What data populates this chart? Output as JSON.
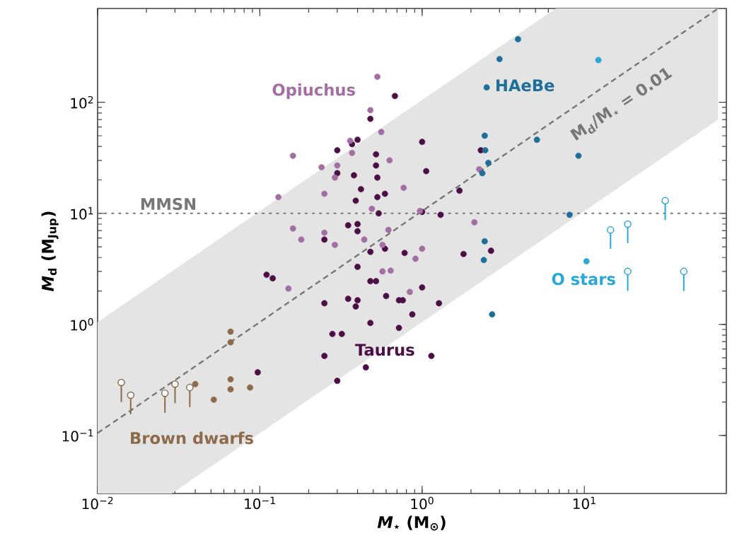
{
  "chart_data": {
    "type": "scatter",
    "xlabel": "*M*$_{⋆}$ (M$_{⊙}$)",
    "ylabel": "*M*$_{d}$ (M$_{Jup}$)",
    "log": "xy",
    "grid": false,
    "legend": false,
    "xlim": [
      0.01,
      75
    ],
    "ylim": [
      0.03,
      700
    ],
    "xticks": [
      {
        "value": 0.01,
        "label": "10$^{−2}$"
      },
      {
        "value": 0.1,
        "label": "10$^{−1}$"
      },
      {
        "value": 1,
        "label": "10$^{0}$"
      },
      {
        "value": 10,
        "label": "10$^{1}$"
      }
    ],
    "yticks": [
      {
        "value": 0.1,
        "label": "10$^{−1}$"
      },
      {
        "value": 1,
        "label": "10$^{0}$"
      },
      {
        "value": 10,
        "label": "10$^{1}$"
      },
      {
        "value": 100,
        "label": "10$^{2}$"
      }
    ],
    "ref_lines": [
      {
        "axis": "y",
        "value": 10,
        "label": "MMSN",
        "color": "#777777",
        "line_style": "dotted"
      }
    ],
    "series": [
      {
        "type": "line",
        "name": "*M*$_{d}$/*M*$_{⋆}$ = 0.01",
        "color": "#777777",
        "line_style": "dashed",
        "marker": "none",
        "x": [
          0.01,
          0.0286,
          6.68,
          66.8
        ],
        "values": [
          0.105,
          0.3,
          70,
          700
        ],
        "lower": [
          0.03,
          0.03,
          7,
          70
        ],
        "upper": [
          1.05,
          3,
          700,
          700
        ]
      },
      {
        "name": "Taurus",
        "color": "#4b0f45",
        "marker": "circle",
        "x": [
          0.68,
          0.48,
          0.37,
          0.4,
          0.3,
          0.52,
          0.52,
          0.3,
          0.38,
          0.53,
          0.42,
          0.39,
          0.53,
          0.59,
          0.54,
          0.35,
          0.4,
          0.4,
          0.25,
          0.48,
          0.59,
          0.78,
          1.0,
          1.06,
          1.7,
          1.3,
          2.66,
          1.8,
          2.3,
          1.0,
          0.097,
          0.11,
          0.12,
          0.25,
          0.35,
          0.4,
          0.39,
          0.4,
          0.6,
          0.48,
          0.52,
          0.72,
          0.76,
          0.72,
          0.48,
          0.28,
          0.32,
          0.25,
          0.45,
          0.3,
          1.0,
          0.87,
          1.27,
          1.14
        ],
        "values": [
          114,
          71,
          42,
          46,
          37,
          34,
          27,
          23,
          22,
          21,
          16.5,
          13,
          14,
          15,
          10,
          7.8,
          8,
          6.9,
          5.8,
          4.5,
          4.8,
          4.4,
          44,
          24,
          16,
          9.7,
          4.6,
          4.3,
          37,
          10.3,
          0.37,
          2.8,
          2.6,
          1.55,
          1.7,
          1.65,
          1.45,
          3.3,
          1.8,
          2.45,
          2.45,
          1.65,
          1.65,
          0.93,
          1.03,
          0.82,
          0.82,
          0.52,
          0.41,
          0.31,
          2.15,
          1.23,
          1.55,
          0.52
        ]
      },
      {
        "name": "Opiuchus",
        "color": "#a36fa3",
        "marker": "circle",
        "x": [
          0.53,
          0.48,
          0.56,
          0.16,
          0.24,
          0.3,
          0.29,
          0.37,
          0.36,
          0.63,
          0.13,
          0.25,
          0.77,
          0.49,
          0.16,
          0.18,
          0.25,
          0.29,
          0.44,
          0.62,
          0.57,
          2.1,
          1.0,
          2.25,
          0.15,
          0.57,
          0.64,
          0.84,
          0.91,
          0.97
        ],
        "values": [
          170,
          85,
          54,
          33,
          26,
          27,
          21,
          35,
          45,
          30,
          14,
          15,
          17,
          11,
          7.3,
          5.8,
          6.7,
          5.2,
          5.8,
          7.1,
          5.2,
          8.3,
          4.8,
          25,
          2.1,
          3.0,
          3.05,
          1.96,
          3.9,
          10.5
        ]
      },
      {
        "name": "HAeBe",
        "color": "#1e6e98",
        "marker": "circle",
        "x": [
          3.9,
          3.0,
          2.5,
          2.43,
          5.1,
          9.2,
          2.56,
          2.35,
          8.1,
          2.43,
          2.4,
          2.7,
          2.45
        ],
        "values": [
          370,
          245,
          136,
          50,
          46,
          33,
          28.5,
          23,
          9.7,
          5.6,
          3.8,
          1.23,
          37
        ]
      },
      {
        "name": "O stars",
        "color": "#2ba7d8",
        "marker": "circle",
        "x": [
          12.2,
          10.3
        ],
        "values": [
          240,
          3.7
        ]
      },
      {
        "color": "#2ba7d8",
        "marker": "circle",
        "x": [
          31.5,
          14.5,
          18.5,
          18.5,
          41
        ],
        "values": [
          13,
          7.1,
          8,
          3.0,
          3.0
        ],
        "errors": [
          [
            8.7,
            13
          ],
          [
            4.8,
            7.1
          ],
          [
            5.4,
            8
          ],
          [
            2.0,
            3.0
          ],
          [
            2.0,
            3.0
          ]
        ]
      },
      {
        "name": "Brown dwarfs",
        "color": "#8c6a4a",
        "marker": "circle",
        "x": [
          0.066,
          0.066,
          0.066,
          0.066,
          0.087,
          0.052,
          0.04
        ],
        "values": [
          0.86,
          0.69,
          0.32,
          0.26,
          0.27,
          0.21,
          0.29
        ]
      },
      {
        "color": "#8c6a4a",
        "marker": "circle",
        "x": [
          0.014,
          0.016,
          0.026,
          0.03,
          0.037
        ],
        "values": [
          0.3,
          0.23,
          0.24,
          0.29,
          0.27
        ],
        "errors": [
          [
            0.2,
            0.3
          ],
          [
            0.155,
            0.23
          ],
          [
            0.16,
            0.24
          ],
          [
            0.195,
            0.29
          ],
          [
            0.18,
            0.27
          ]
        ]
      }
    ]
  }
}
